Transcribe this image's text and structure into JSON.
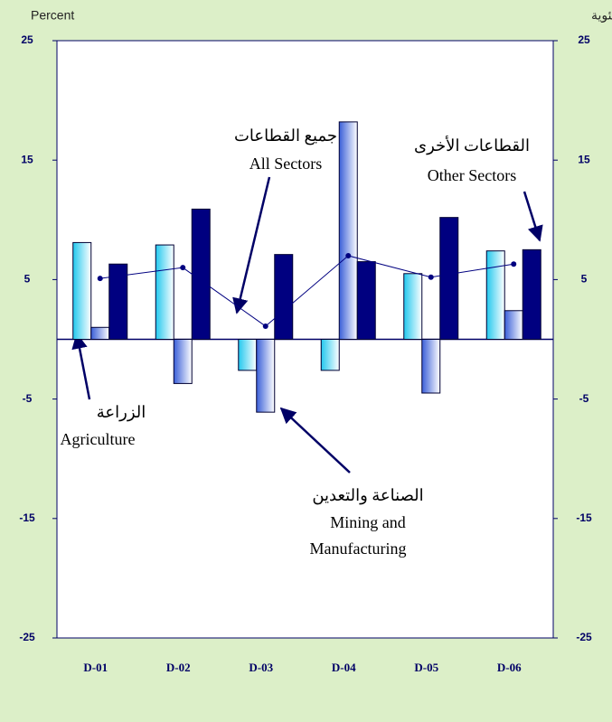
{
  "chart_data": {
    "type": "bar",
    "y_label": "Percent",
    "y2_label": "نسبة مئوية",
    "categories": [
      "D-01",
      "D-02",
      "D-03",
      "D-04",
      "D-05",
      "D-06"
    ],
    "series": [
      {
        "color": "#22c8ee",
        "values": [
          8.1,
          7.9,
          -2.6,
          -2.6,
          5.5,
          7.4
        ]
      },
      {
        "color": "#3a5fd8",
        "values": [
          1.0,
          -3.7,
          -6.1,
          18.2,
          -4.5,
          2.4
        ]
      },
      {
        "color": "#000080",
        "values": [
          6.3,
          10.9,
          7.1,
          6.5,
          10.2,
          7.5
        ]
      },
      {
        "type": "line",
        "color": "#000080",
        "values": [
          5.1,
          6.0,
          1.1,
          7.0,
          5.2,
          6.3
        ]
      }
    ],
    "ylim": [
      -25,
      25
    ],
    "yticks": [
      -25,
      -15,
      -5,
      5,
      15,
      25
    ],
    "y2lim": [
      -25,
      25
    ],
    "y2ticks": [
      -25,
      -15,
      -5,
      5,
      15,
      25
    ],
    "annotations": [
      {
        "lines": [
          "جميع القطاعات",
          "All Sectors"
        ]
      },
      {
        "lines": [
          "القطاعات الأخرى",
          "Other Sectors"
        ]
      },
      {
        "lines": [
          "الزراعة",
          "Agriculture"
        ]
      },
      {
        "lines": [
          "الصناعة والتعدين",
          "Mining and",
          "Manufacturing"
        ]
      }
    ]
  }
}
